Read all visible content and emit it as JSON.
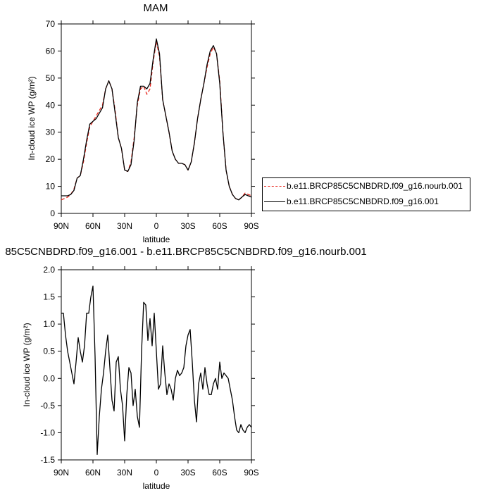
{
  "chart_data": [
    {
      "type": "line",
      "title": "MAM",
      "xlabel": "latitude",
      "ylabel": "In-cloud ice WP (g/m²)",
      "x_ticks": [
        "90N",
        "60N",
        "30N",
        "0",
        "30S",
        "60S",
        "90S"
      ],
      "xlim": [
        90,
        -90
      ],
      "ylim": [
        0,
        70
      ],
      "y_ticks": [
        "0",
        "10",
        "20",
        "30",
        "40",
        "50",
        "60",
        "70"
      ],
      "legend": "right",
      "grid": false,
      "series": [
        {
          "name": "b.e11.BRCP85C5CNBDRD.f09_g16.nourb.001",
          "color": "#e8281e",
          "dash": "dashed",
          "x": [
            90,
            87,
            84,
            81,
            78,
            75,
            72,
            69,
            66,
            63,
            60,
            57,
            54,
            51,
            48,
            45,
            42,
            39,
            36,
            33,
            30,
            27,
            24,
            21,
            18,
            15,
            12,
            9,
            6,
            3,
            0,
            -3,
            -6,
            -9,
            -12,
            -15,
            -18,
            -21,
            -24,
            -27,
            -30,
            -33,
            -36,
            -39,
            -42,
            -45,
            -48,
            -51,
            -54,
            -57,
            -60,
            -63,
            -66,
            -69,
            -72,
            -75,
            -78,
            -81,
            -84,
            -87,
            -90
          ],
          "y": [
            5,
            5.5,
            6,
            7,
            9,
            13,
            14,
            19,
            26,
            32,
            34,
            36,
            38,
            40,
            46,
            49,
            46,
            38,
            28,
            24,
            16,
            15.5,
            19,
            28,
            40,
            46,
            47,
            44,
            46,
            56,
            63.5,
            58,
            42,
            36,
            30,
            23,
            20,
            18.5,
            18.5,
            18,
            16,
            19,
            26,
            35,
            42,
            48,
            54,
            59,
            61.5,
            59,
            49,
            30,
            16,
            10,
            7,
            5.5,
            5,
            6,
            7.5,
            7,
            6.5
          ]
        },
        {
          "name": "b.e11.BRCP85C5CNBDRD.f09_g16.001",
          "color": "#000000",
          "dash": "solid",
          "x": [
            90,
            87,
            84,
            81,
            78,
            75,
            72,
            69,
            66,
            63,
            60,
            57,
            54,
            51,
            48,
            45,
            42,
            39,
            36,
            33,
            30,
            27,
            24,
            21,
            18,
            15,
            12,
            9,
            6,
            3,
            0,
            -3,
            -6,
            -9,
            -12,
            -15,
            -18,
            -21,
            -24,
            -27,
            -30,
            -33,
            -36,
            -39,
            -42,
            -45,
            -48,
            -51,
            -54,
            -57,
            -60,
            -63,
            -66,
            -69,
            -72,
            -75,
            -78,
            -81,
            -84,
            -87,
            -90
          ],
          "y": [
            6.5,
            6.5,
            6.5,
            7,
            8.5,
            13,
            14,
            20,
            27,
            33,
            34,
            35,
            37,
            39,
            46,
            49,
            46,
            37,
            28,
            24,
            16,
            15.5,
            18,
            27,
            41,
            47,
            47,
            46,
            48,
            57,
            64.5,
            59,
            42,
            36,
            30,
            23,
            20,
            18.5,
            18.5,
            18,
            16,
            19,
            26,
            35,
            42,
            48,
            55,
            60,
            62,
            59,
            48,
            30,
            16,
            10,
            7,
            5.5,
            5,
            6,
            7,
            6.5,
            6
          ]
        }
      ]
    },
    {
      "type": "line",
      "title": "85C5CNBDRD.f09_g16.001 - b.e11.BRCP85C5CNBDRD.f09_g16.nourb.001",
      "xlabel": "latitude",
      "ylabel": "In-cloud ice WP (g/m²)",
      "x_ticks": [
        "90N",
        "60N",
        "30N",
        "0",
        "30S",
        "60S",
        "90S"
      ],
      "xlim": [
        90,
        -90
      ],
      "ylim": [
        -1.5,
        2.0
      ],
      "y_ticks": [
        "-1.5",
        "-1.0",
        "-0.5",
        "0.0",
        "0.5",
        "1.0",
        "1.5",
        "2.0"
      ],
      "grid": false,
      "series": [
        {
          "color": "#000000",
          "dash": "solid",
          "x": [
            90,
            88,
            86,
            84,
            82,
            80,
            78,
            76,
            74,
            72,
            70,
            68,
            66,
            64,
            62,
            60,
            58,
            56,
            54,
            52,
            50,
            48,
            46,
            44,
            42,
            40,
            38,
            36,
            34,
            32,
            30,
            28,
            26,
            24,
            22,
            20,
            18,
            16,
            14,
            12,
            10,
            8,
            6,
            4,
            2,
            0,
            -2,
            -4,
            -6,
            -8,
            -10,
            -12,
            -14,
            -16,
            -18,
            -20,
            -22,
            -24,
            -26,
            -28,
            -30,
            -32,
            -34,
            -36,
            -38,
            -40,
            -42,
            -44,
            -46,
            -48,
            -50,
            -52,
            -54,
            -56,
            -58,
            -60,
            -62,
            -64,
            -66,
            -68,
            -70,
            -72,
            -74,
            -76,
            -78,
            -80,
            -82,
            -84,
            -86,
            -88,
            -90
          ],
          "y": [
            1.2,
            1.2,
            0.8,
            0.5,
            0.3,
            0.1,
            -0.1,
            0.3,
            0.75,
            0.5,
            0.3,
            0.6,
            1.2,
            1.2,
            1.5,
            1.7,
            0.4,
            -1.4,
            -0.7,
            -0.2,
            0.1,
            0.5,
            0.8,
            0.2,
            -0.4,
            -0.6,
            0.3,
            0.4,
            -0.2,
            -0.5,
            -1.15,
            -0.3,
            0.2,
            0.1,
            -0.5,
            -0.2,
            -0.7,
            -0.9,
            0.5,
            1.4,
            1.35,
            0.7,
            1.1,
            0.6,
            1.2,
            0.5,
            -0.2,
            -0.1,
            0.6,
            0.1,
            -0.3,
            -0.1,
            -0.2,
            -0.4,
            0.0,
            0.15,
            0.05,
            0.1,
            0.2,
            0.6,
            0.8,
            0.9,
            0.3,
            -0.4,
            -0.8,
            -0.1,
            0.1,
            -0.2,
            0.2,
            -0.1,
            -0.3,
            -0.3,
            -0.1,
            0.0,
            -0.2,
            0.3,
            0.0,
            0.1,
            0.05,
            0.0,
            -0.2,
            -0.4,
            -0.7,
            -0.95,
            -1.0,
            -0.85,
            -0.95,
            -1.0,
            -0.9,
            -0.85,
            -0.9
          ]
        }
      ]
    }
  ]
}
